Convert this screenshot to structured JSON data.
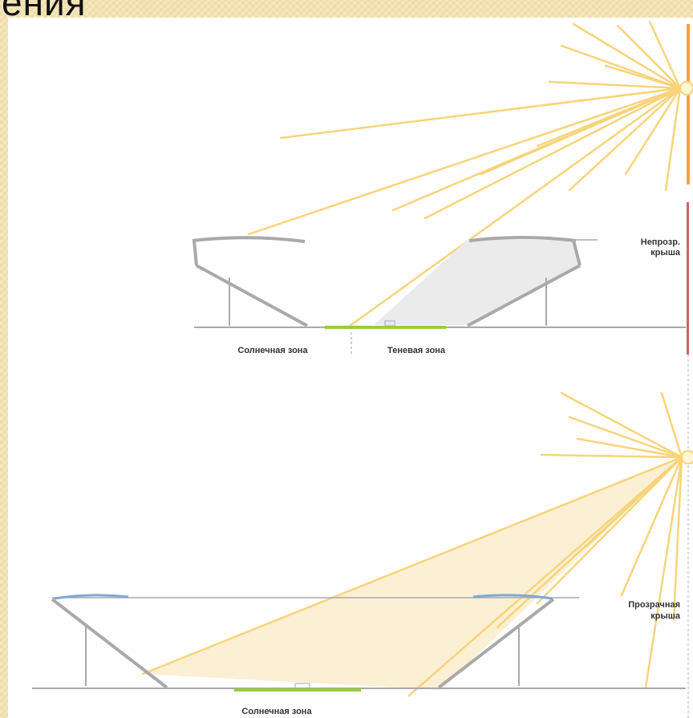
{
  "slide": {
    "title": "ения"
  },
  "diagram_top": {
    "roof_label_line1": "Непрозр.",
    "roof_label_line2": "крыша",
    "zone_sun": "Солнечная зона",
    "zone_shade": "Теневая зона"
  },
  "diagram_bottom": {
    "roof_label_line1": "Прозрачная",
    "roof_label_line2": "крыша",
    "zone_sun": "Солнечная зона"
  },
  "colors": {
    "background": "#f3e3b2",
    "sun_ray": "#f7d47a",
    "structure": "#a9a9a9",
    "shade_fill": "#ebebeb",
    "light_fill": "#fbeed2",
    "ground_green": "#9acd3c",
    "glass_blue": "#7fa9d6",
    "accent_orange": "#f2a33a",
    "accent_red": "#c46a5a"
  }
}
